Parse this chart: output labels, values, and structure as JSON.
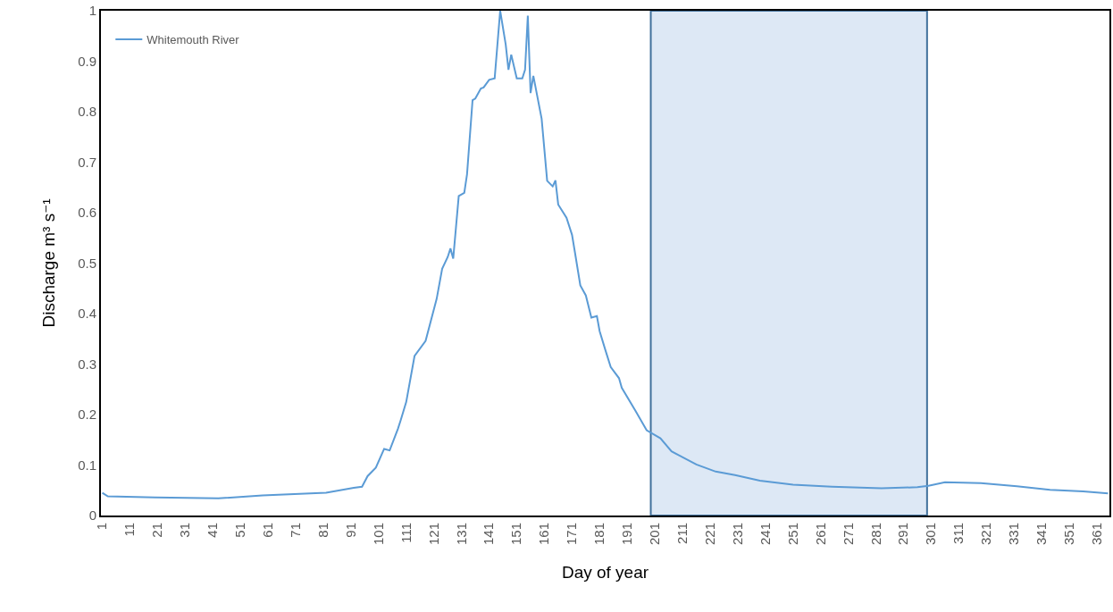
{
  "chart_data": {
    "type": "line",
    "xlabel": "Day of year",
    "ylabel": "Discharge m³ s⁻¹",
    "x": [
      1,
      3,
      20,
      43,
      59,
      82,
      92,
      95,
      97,
      100,
      103,
      105,
      108,
      109,
      111,
      114,
      118,
      122,
      124,
      126,
      127,
      128,
      130,
      132,
      133,
      135,
      136,
      138,
      139,
      141,
      143,
      145,
      147,
      148,
      149,
      151,
      153,
      154,
      155,
      156,
      157,
      160,
      162,
      164,
      165,
      166,
      169,
      171,
      172,
      174,
      176,
      178,
      180,
      181,
      183,
      185,
      188,
      189,
      194,
      198,
      203,
      207,
      216,
      223,
      230,
      239,
      251,
      265,
      283,
      296,
      300,
      306,
      319,
      332,
      344,
      356,
      365
    ],
    "series": [
      {
        "name": "Whitemouth River",
        "color": "#5b9bd5",
        "values": [
          0.045,
          0.038,
          0.036,
          0.034,
          0.04,
          0.045,
          0.055,
          0.057,
          0.078,
          0.095,
          0.132,
          0.129,
          0.172,
          0.189,
          0.225,
          0.316,
          0.346,
          0.429,
          0.489,
          0.512,
          0.529,
          0.509,
          0.633,
          0.639,
          0.676,
          0.823,
          0.826,
          0.846,
          0.848,
          0.863,
          0.866,
          1.0,
          0.933,
          0.883,
          0.913,
          0.866,
          0.866,
          0.883,
          0.99,
          0.837,
          0.871,
          0.786,
          0.663,
          0.652,
          0.664,
          0.616,
          0.59,
          0.556,
          0.523,
          0.456,
          0.436,
          0.392,
          0.395,
          0.365,
          0.329,
          0.294,
          0.272,
          0.253,
          0.207,
          0.169,
          0.153,
          0.127,
          0.101,
          0.087,
          0.08,
          0.069,
          0.061,
          0.057,
          0.054,
          0.056,
          0.059,
          0.066,
          0.064,
          0.058,
          0.051,
          0.048,
          0.044
        ]
      }
    ],
    "xlim": [
      0.5,
      365.5
    ],
    "xticks": [
      1,
      11,
      21,
      31,
      41,
      51,
      61,
      71,
      81,
      91,
      101,
      111,
      121,
      131,
      141,
      151,
      161,
      171,
      181,
      191,
      201,
      211,
      221,
      231,
      241,
      251,
      261,
      271,
      281,
      291,
      301,
      311,
      321,
      331,
      341,
      351,
      361
    ],
    "ylim": [
      0,
      1
    ],
    "yticks": [
      0,
      0.1,
      0.2,
      0.3,
      0.4,
      0.5,
      0.6,
      0.7,
      0.8,
      0.9,
      1
    ],
    "bands": [
      {
        "axis": "x",
        "from": 199.5,
        "to": 299.5,
        "color": "#dde8f5"
      }
    ],
    "grid": false,
    "legend": "top left",
    "marker": "none",
    "line_style": "solid"
  }
}
